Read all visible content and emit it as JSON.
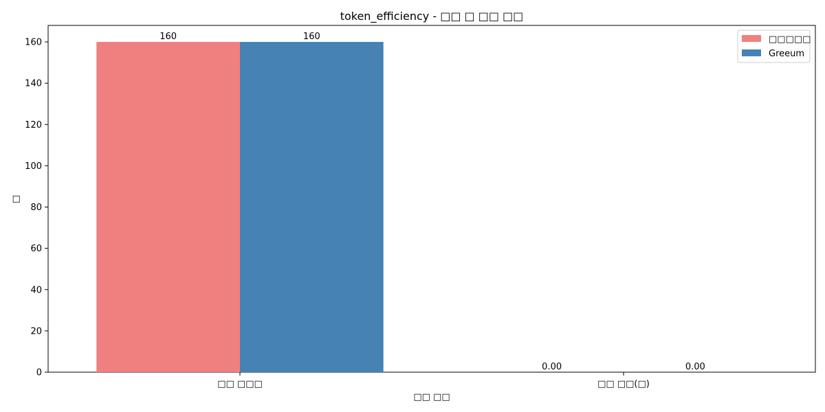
{
  "chart_data": {
    "type": "bar",
    "title": "token_efficiency - □□ □ □□ □□",
    "xlabel": "□□ □□",
    "ylabel": "□",
    "categories": [
      "□□ □□□",
      "□□ □□(□)"
    ],
    "series": [
      {
        "name": "□□□□□",
        "color": "#f08080",
        "values": [
          160,
          0.0
        ],
        "labels": [
          "160",
          "0.00"
        ]
      },
      {
        "name": "Greeum",
        "color": "#4682b4",
        "values": [
          160,
          0.0
        ],
        "labels": [
          "160",
          "0.00"
        ]
      }
    ],
    "ylim": [
      0,
      168
    ],
    "yticks": [
      0,
      20,
      40,
      60,
      80,
      100,
      120,
      140,
      160
    ],
    "grid": false,
    "legend_position": "top-right"
  }
}
